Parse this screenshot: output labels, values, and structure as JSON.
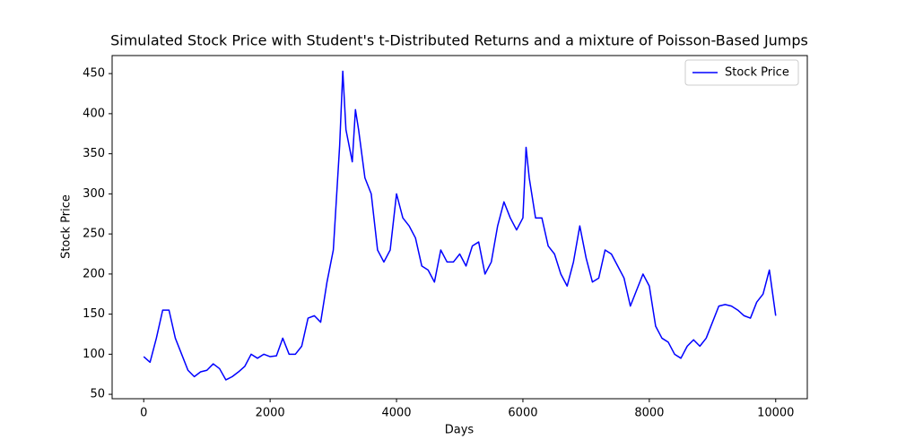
{
  "chart_data": {
    "type": "line",
    "title": "Simulated Stock Price with Student's t-Distributed Returns and a mixture of Poisson-Based Jumps",
    "xlabel": "Days",
    "ylabel": "Stock Price",
    "x": [
      0,
      100,
      200,
      300,
      400,
      500,
      600,
      700,
      800,
      900,
      1000,
      1100,
      1200,
      1300,
      1400,
      1500,
      1600,
      1700,
      1800,
      1900,
      2000,
      2100,
      2200,
      2300,
      2400,
      2500,
      2600,
      2700,
      2800,
      2900,
      3000,
      3100,
      3150,
      3200,
      3300,
      3350,
      3400,
      3500,
      3600,
      3700,
      3800,
      3900,
      4000,
      4100,
      4200,
      4300,
      4400,
      4500,
      4600,
      4700,
      4800,
      4900,
      5000,
      5100,
      5200,
      5300,
      5400,
      5500,
      5600,
      5700,
      5800,
      5900,
      6000,
      6050,
      6100,
      6200,
      6300,
      6400,
      6500,
      6600,
      6700,
      6800,
      6900,
      7000,
      7100,
      7200,
      7300,
      7400,
      7500,
      7600,
      7700,
      7800,
      7900,
      8000,
      8100,
      8200,
      8300,
      8400,
      8500,
      8600,
      8700,
      8800,
      8900,
      9000,
      9100,
      9200,
      9300,
      9400,
      9500,
      9600,
      9700,
      9800,
      9900,
      10000
    ],
    "series": [
      {
        "name": "Stock Price",
        "color": "#0000ff",
        "values": [
          97,
          90,
          120,
          155,
          155,
          120,
          100,
          80,
          72,
          78,
          80,
          88,
          82,
          68,
          72,
          78,
          85,
          100,
          95,
          100,
          97,
          98,
          120,
          100,
          100,
          110,
          145,
          148,
          140,
          190,
          230,
          360,
          453,
          380,
          340,
          405,
          380,
          320,
          300,
          230,
          215,
          230,
          300,
          270,
          260,
          245,
          210,
          205,
          190,
          230,
          215,
          215,
          225,
          210,
          235,
          240,
          200,
          215,
          260,
          290,
          270,
          255,
          270,
          358,
          320,
          270,
          270,
          235,
          225,
          200,
          185,
          215,
          260,
          220,
          190,
          195,
          230,
          225,
          210,
          195,
          160,
          180,
          200,
          185,
          135,
          120,
          115,
          100,
          95,
          110,
          118,
          110,
          120,
          140,
          160,
          162,
          160,
          155,
          148,
          145,
          165,
          175,
          205,
          148
        ]
      }
    ],
    "xlim": [
      -500,
      10500
    ],
    "ylim": [
      44.5,
      472.5
    ],
    "xticks": [
      0,
      2000,
      4000,
      6000,
      8000,
      10000
    ],
    "yticks": [
      50,
      100,
      150,
      200,
      250,
      300,
      350,
      400,
      450
    ],
    "legend": "upper right"
  }
}
